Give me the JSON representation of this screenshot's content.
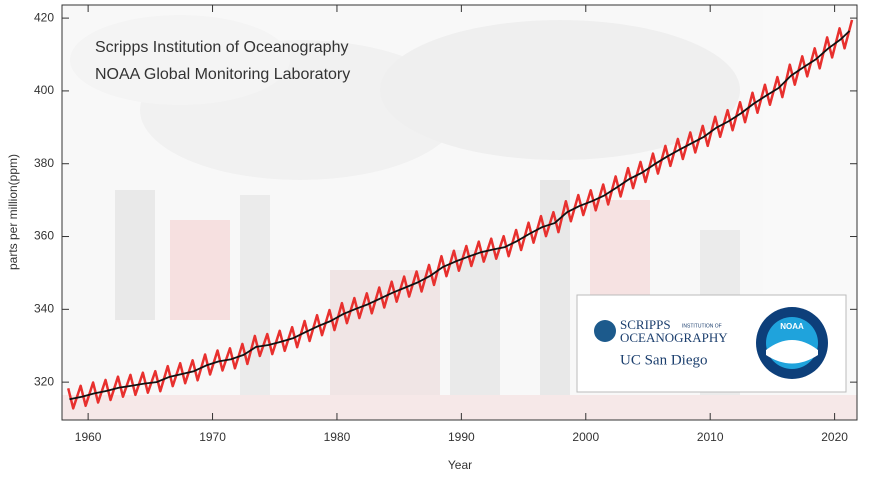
{
  "chart_data": {
    "type": "line",
    "annotation": [
      "Scripps Institution of Oceanography",
      "NOAA Global Monitoring Laboratory"
    ],
    "logos": {
      "scripps": [
        "SCRIPPS",
        "INSTITUTION OF",
        "OCEANOGRAPHY"
      ],
      "ucsd": "UC San Diego",
      "noaa": "NOAA"
    },
    "xlabel": "Year",
    "ylabel": "parts per million(ppm)",
    "xlim": [
      1957.9,
      2021.8
    ],
    "xticks": [
      1960,
      1970,
      1980,
      1990,
      2000,
      2010,
      2020
    ],
    "ylim": [
      309.6,
      423.6
    ],
    "yticks": [
      320,
      340,
      360,
      380,
      400,
      420
    ],
    "series": [
      {
        "color": "#e8302e",
        "x": [
          1958.4,
          1958.8,
          1959.4,
          1959.8,
          1960.4,
          1960.8,
          1961.4,
          1961.8,
          1962.4,
          1962.8,
          1963.4,
          1963.8,
          1964.4,
          1964.8,
          1965.4,
          1965.8,
          1966.4,
          1966.8,
          1967.4,
          1967.8,
          1968.4,
          1968.8,
          1969.4,
          1969.8,
          1970.4,
          1970.8,
          1971.4,
          1971.8,
          1972.4,
          1972.8,
          1973.4,
          1973.8,
          1974.4,
          1974.8,
          1975.4,
          1975.8,
          1976.4,
          1976.8,
          1977.4,
          1977.8,
          1978.4,
          1978.8,
          1979.4,
          1979.8,
          1980.4,
          1980.8,
          1981.4,
          1981.8,
          1982.4,
          1982.8,
          1983.4,
          1983.8,
          1984.4,
          1984.8,
          1985.4,
          1985.8,
          1986.4,
          1986.8,
          1987.4,
          1987.8,
          1988.4,
          1988.8,
          1989.4,
          1989.8,
          1990.4,
          1990.8,
          1991.4,
          1991.8,
          1992.4,
          1992.8,
          1993.4,
          1993.8,
          1994.4,
          1994.8,
          1995.4,
          1995.8,
          1996.4,
          1996.8,
          1997.4,
          1997.8,
          1998.4,
          1998.8,
          1999.4,
          1999.8,
          2000.4,
          2000.8,
          2001.4,
          2001.8,
          2002.4,
          2002.8,
          2003.4,
          2003.8,
          2004.4,
          2004.8,
          2005.4,
          2005.8,
          2006.4,
          2006.8,
          2007.4,
          2007.8,
          2008.4,
          2008.8,
          2009.4,
          2009.8,
          2010.4,
          2010.8,
          2011.4,
          2011.8,
          2012.4,
          2012.8,
          2013.4,
          2013.8,
          2014.4,
          2014.8,
          2015.4,
          2015.8,
          2016.4,
          2016.8,
          2017.4,
          2017.8,
          2018.4,
          2018.8,
          2019.4,
          2019.8,
          2020.4,
          2020.8,
          2021.4
        ],
        "values": [
          318.3,
          312.8,
          319.0,
          313.5,
          319.9,
          314.4,
          320.6,
          315.1,
          321.5,
          316.0,
          322.0,
          316.5,
          322.6,
          317.1,
          323.0,
          317.5,
          324.4,
          318.9,
          325.2,
          319.7,
          326.0,
          320.5,
          327.6,
          322.1,
          328.7,
          323.2,
          329.3,
          323.8,
          330.5,
          325.0,
          332.7,
          327.2,
          333.2,
          327.7,
          334.1,
          328.6,
          335.1,
          329.6,
          336.8,
          331.3,
          338.4,
          332.9,
          339.8,
          334.3,
          341.7,
          336.2,
          343.1,
          337.6,
          344.4,
          338.9,
          346.0,
          340.5,
          347.6,
          342.1,
          349.0,
          343.5,
          350.4,
          344.9,
          352.2,
          346.7,
          354.6,
          349.1,
          356.1,
          350.6,
          357.4,
          351.9,
          358.6,
          353.1,
          359.4,
          353.9,
          360.1,
          354.6,
          361.8,
          356.3,
          363.8,
          358.3,
          365.6,
          360.1,
          366.7,
          361.2,
          369.7,
          364.2,
          371.4,
          365.9,
          372.7,
          367.2,
          374.3,
          368.8,
          376.5,
          371.0,
          378.8,
          373.3,
          380.5,
          375.0,
          382.8,
          377.3,
          384.9,
          379.4,
          386.8,
          381.3,
          388.6,
          383.1,
          390.4,
          384.9,
          392.9,
          387.4,
          394.7,
          389.2,
          396.9,
          391.4,
          399.5,
          394.0,
          401.7,
          396.2,
          403.8,
          398.3,
          407.2,
          401.7,
          409.5,
          404.0,
          411.7,
          406.2,
          414.7,
          409.2,
          417.2,
          411.7,
          419.5
        ]
      },
      {
        "color": "#111111",
        "x": [
          1958.5,
          1959.5,
          1960.5,
          1961.5,
          1962.5,
          1963.5,
          1964.5,
          1965.5,
          1966.5,
          1967.5,
          1968.5,
          1969.5,
          1970.5,
          1971.5,
          1972.5,
          1973.5,
          1974.5,
          1975.5,
          1976.5,
          1977.5,
          1978.5,
          1979.5,
          1980.5,
          1981.5,
          1982.5,
          1983.5,
          1984.5,
          1985.5,
          1986.5,
          1987.5,
          1988.5,
          1989.5,
          1990.5,
          1991.5,
          1992.5,
          1993.5,
          1994.5,
          1995.5,
          1996.5,
          1997.5,
          1998.5,
          1999.5,
          2000.5,
          2001.5,
          2002.5,
          2003.5,
          2004.5,
          2005.5,
          2006.5,
          2007.5,
          2008.5,
          2009.5,
          2010.5,
          2011.5,
          2012.5,
          2013.5,
          2014.5,
          2015.5,
          2016.5,
          2017.5,
          2018.5,
          2019.5,
          2020.5,
          2021.2
        ],
        "values": [
          315.3,
          316.0,
          316.9,
          317.6,
          318.5,
          319.0,
          319.6,
          320.0,
          321.4,
          322.2,
          323.0,
          324.6,
          325.7,
          326.3,
          327.5,
          329.7,
          330.2,
          331.1,
          332.1,
          333.8,
          335.4,
          336.8,
          338.7,
          340.1,
          341.4,
          343.0,
          344.6,
          346.0,
          347.4,
          349.2,
          351.6,
          353.1,
          354.4,
          355.6,
          356.4,
          357.1,
          358.8,
          360.8,
          362.6,
          363.7,
          366.7,
          368.4,
          369.7,
          371.3,
          373.5,
          375.8,
          377.5,
          379.8,
          381.9,
          383.8,
          385.6,
          387.4,
          389.9,
          391.7,
          393.9,
          396.5,
          398.7,
          400.8,
          404.2,
          406.5,
          408.7,
          411.7,
          414.2,
          416.5
        ]
      }
    ]
  }
}
